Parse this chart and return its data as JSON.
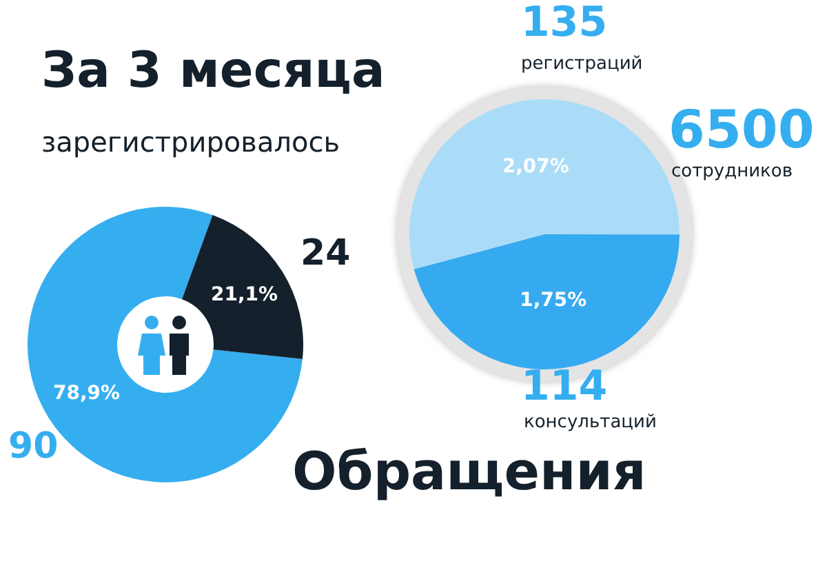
{
  "chart_data": [
    {
      "type": "donut",
      "title": "За 3 месяца",
      "subtitle": "зарегистрировалось",
      "categories": [
        null,
        null
      ],
      "values": [
        78.9,
        21.1
      ],
      "colors": [
        "#35aef0",
        "#14202b"
      ],
      "value_labels": [
        "78,9%",
        "21,1%"
      ],
      "annotations": [
        "90",
        "24"
      ]
    },
    {
      "type": "pie",
      "title": "Обращения",
      "categories": [
        null,
        null
      ],
      "values": [
        2.07,
        1.75
      ],
      "colors": [
        "#aadcf8",
        "#36aaf0"
      ],
      "value_labels": [
        "2,07%",
        "1,75%"
      ],
      "annotations": [
        "135",
        "регистраций",
        "6500",
        "сотрудников",
        "114",
        "консультаций"
      ]
    }
  ]
}
